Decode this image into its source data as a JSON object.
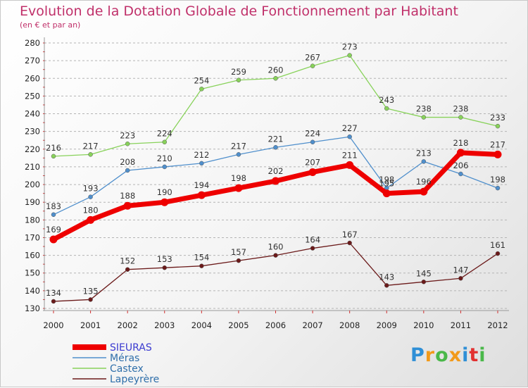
{
  "chart_data": {
    "type": "line",
    "title": "Evolution de la Dotation Globale de Fonctionnement par Habitant",
    "subtitle": "(en € et par an)",
    "x": [
      "2000",
      "2001",
      "2002",
      "2003",
      "2004",
      "2005",
      "2006",
      "2007",
      "2008",
      "2009",
      "2010",
      "2011",
      "2012"
    ],
    "ylim": [
      130,
      280
    ],
    "yticks": [
      130,
      140,
      150,
      160,
      170,
      180,
      190,
      200,
      210,
      220,
      230,
      240,
      250,
      260,
      270,
      280
    ],
    "grid": true,
    "legend_position": "bottom-left",
    "series": [
      {
        "name": "SIEURAS",
        "color": "#ee0000",
        "values": [
          169,
          180,
          188,
          190,
          194,
          198,
          202,
          207,
          211,
          195,
          196,
          218,
          217
        ]
      },
      {
        "name": "Méras",
        "color": "#4f8fcc",
        "values": [
          183,
          193,
          208,
          210,
          212,
          217,
          221,
          224,
          227,
          198,
          213,
          206,
          198
        ]
      },
      {
        "name": "Castex",
        "color": "#88d25a",
        "values": [
          216,
          217,
          223,
          224,
          254,
          259,
          260,
          267,
          273,
          243,
          238,
          238,
          233
        ]
      },
      {
        "name": "Lapeyrère",
        "color": "#6b1a1a",
        "values": [
          134,
          135,
          152,
          153,
          154,
          157,
          160,
          164,
          167,
          143,
          145,
          147,
          161
        ]
      }
    ]
  },
  "logo": {
    "letters": [
      "P",
      "r",
      "o",
      "x",
      "i",
      "t",
      "i"
    ],
    "colors": [
      "#2f8fd6",
      "#f29a1a",
      "#4ab84a",
      "#f29a1a",
      "#2f8fd6",
      "#e23030",
      "#4ab84a"
    ]
  }
}
